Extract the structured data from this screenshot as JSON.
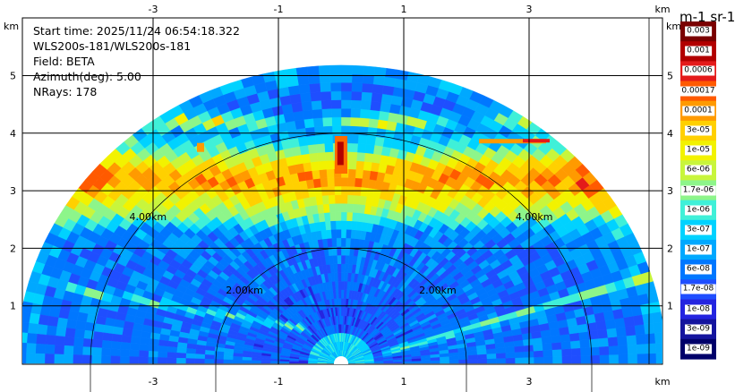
{
  "info": {
    "start_time": "Start time: 2025/11/24 06:54:18.322",
    "station": "WLS200s-181/WLS200s-181",
    "field": "Field: BETA",
    "azimuth": "Azimuth(deg): 5.00",
    "nrays": "NRays: 178"
  },
  "chart_data": {
    "type": "heatmap",
    "title": "",
    "xlabel": "km",
    "ylabel": "km",
    "x_ticks": [
      "-3",
      "-1",
      "1",
      "3"
    ],
    "y_ticks": [
      "1",
      "2",
      "3",
      "4",
      "5"
    ],
    "xlim": [
      -5.0,
      5.2
    ],
    "ylim": [
      0,
      6.0
    ],
    "grid": true,
    "range_rings": [
      "2.00km",
      "4.00km"
    ],
    "scan_max_range_km": 5.1,
    "colorbar": {
      "title": "m-1 sr-1",
      "scale": "log",
      "labels": [
        "0.003",
        "0.001",
        "0.0006",
        "0.00017",
        "0.0001",
        "3e-05",
        "1e-05",
        "6e-06",
        "1.7e-06",
        "1e-06",
        "3e-07",
        "1e-07",
        "6e-08",
        "1.7e-08",
        "1e-08",
        "3e-09",
        "1e-09"
      ],
      "colors": [
        "#7a0000",
        "#b20000",
        "#e41a1a",
        "#ff5a00",
        "#ff9a00",
        "#ffd000",
        "#f2f200",
        "#c8f53c",
        "#8df58a",
        "#3ff0d8",
        "#00d2ff",
        "#00a8ff",
        "#0077ff",
        "#1f4eff",
        "#2424e0",
        "#14149e",
        "#00006a"
      ]
    }
  }
}
